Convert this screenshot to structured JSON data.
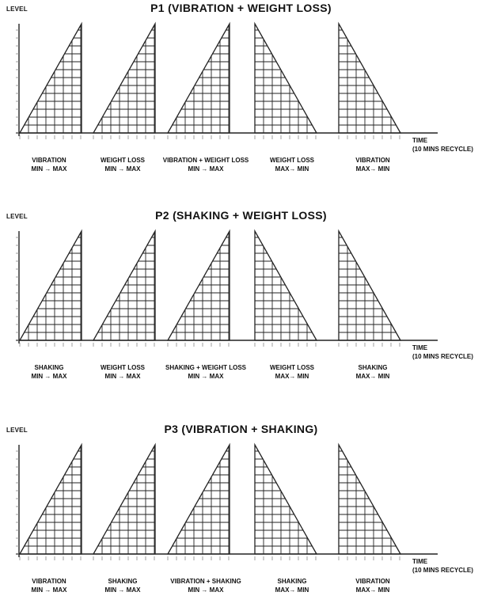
{
  "axis": {
    "level_label": "LEVEL",
    "time_label": "TIME",
    "recycle_label": "(10 MINS RECYCLE)"
  },
  "programs": [
    {
      "title": "P1 (VIBRATION + WEIGHT LOSS)",
      "segments": [
        {
          "name": "VIBRATION",
          "direction": "MIN → MAX",
          "ramp": "up"
        },
        {
          "name": "WEIGHT LOSS",
          "direction": "MIN → MAX",
          "ramp": "up"
        },
        {
          "name": "VIBRATION + WEIGHT LOSS",
          "direction": "MIN → MAX",
          "ramp": "up"
        },
        {
          "name": "WEIGHT LOSS",
          "direction": "MAX→ MIN",
          "ramp": "down"
        },
        {
          "name": "VIBRATION",
          "direction": "MAX→ MIN",
          "ramp": "down"
        }
      ]
    },
    {
      "title": "P2 (SHAKING + WEIGHT LOSS)",
      "segments": [
        {
          "name": "SHAKING",
          "direction": "MIN → MAX",
          "ramp": "up"
        },
        {
          "name": "WEIGHT LOSS",
          "direction": "MIN → MAX",
          "ramp": "up"
        },
        {
          "name": "SHAKING + WEIGHT LOSS",
          "direction": "MIN → MAX",
          "ramp": "up"
        },
        {
          "name": "WEIGHT LOSS",
          "direction": "MAX→ MIN",
          "ramp": "down"
        },
        {
          "name": "SHAKING",
          "direction": "MAX→ MIN",
          "ramp": "down"
        }
      ]
    },
    {
      "title": "P3 (VIBRATION + SHAKING)",
      "segments": [
        {
          "name": "VIBRATION",
          "direction": "MIN → MAX",
          "ramp": "up"
        },
        {
          "name": "SHAKING",
          "direction": "MIN → MAX",
          "ramp": "up"
        },
        {
          "name": "VIBRATION + SHAKING",
          "direction": "MIN → MAX",
          "ramp": "up"
        },
        {
          "name": "SHAKING",
          "direction": "MAX→ MIN",
          "ramp": "down"
        },
        {
          "name": "VIBRATION",
          "direction": "MAX→ MIN",
          "ramp": "down"
        }
      ]
    }
  ]
}
